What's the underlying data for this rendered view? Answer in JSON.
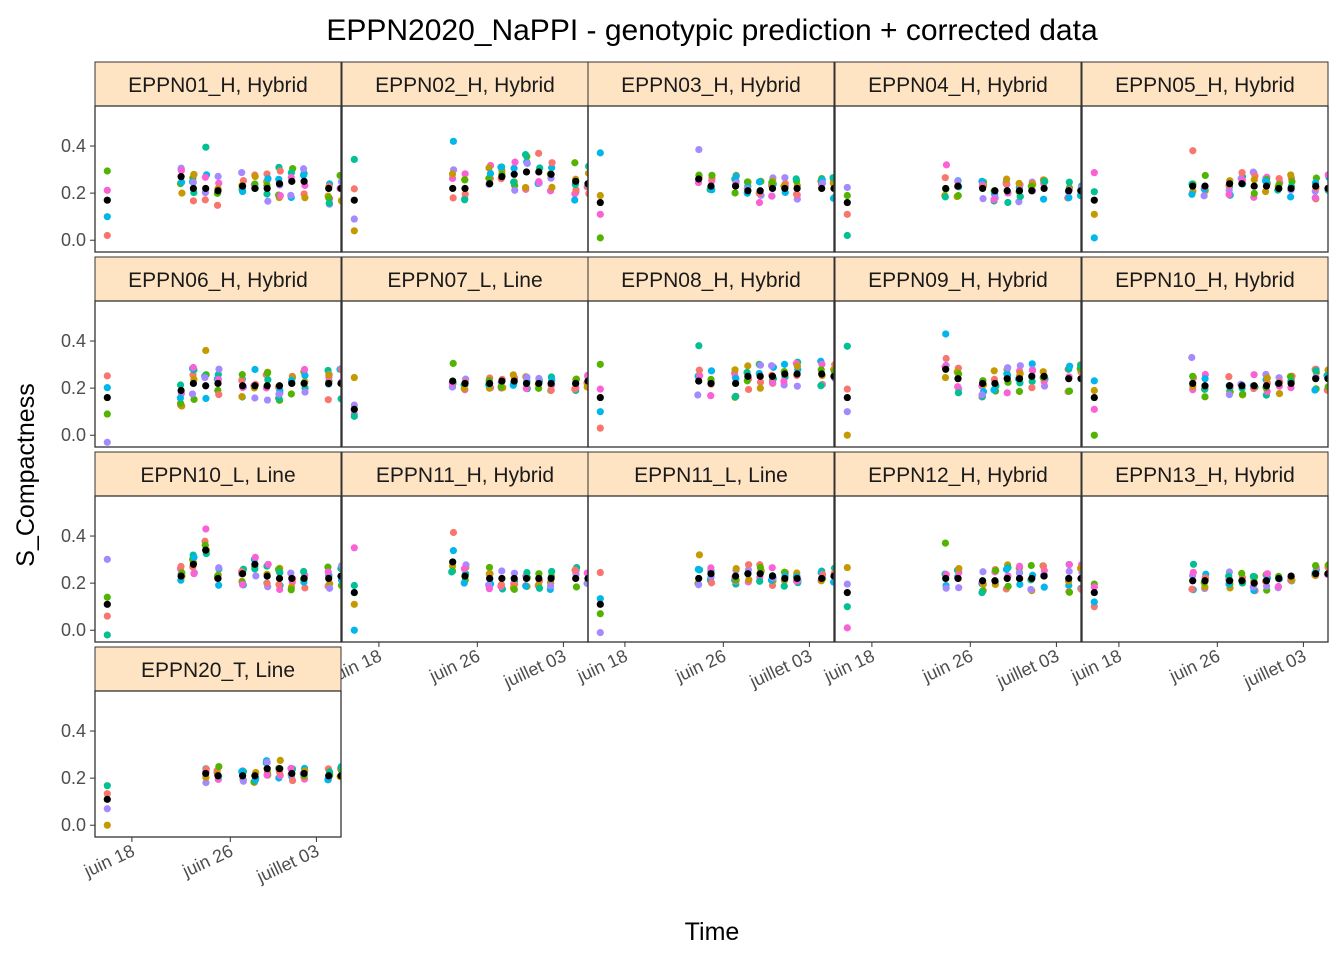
{
  "chart_data": {
    "type": "scatter",
    "title": "EPPN2020_NaPPI - genotypic prediction + corrected data",
    "xlabel": "Time",
    "ylabel": "S_Compactness",
    "ylim": [
      -0.05,
      0.57
    ],
    "xlim": [
      "2020-06-15",
      "2020-07-05"
    ],
    "y_ticks": [
      "0.0",
      "0.2",
      "0.4"
    ],
    "y_tick_values": [
      0.0,
      0.2,
      0.4
    ],
    "x_ticks": [
      {
        "label": "juin 18",
        "date": "2020-06-18"
      },
      {
        "label": "juin 26",
        "date": "2020-06-26"
      },
      {
        "label": "juillet 03",
        "date": "2020-07-03"
      }
    ],
    "grid": false,
    "legend": "none",
    "prediction_color": "#000000",
    "strip_fill": "#FFE4C4",
    "point_colors": [
      "#F8766D",
      "#C49A00",
      "#53B400",
      "#00C094",
      "#00B6EB",
      "#A58AFF",
      "#FB61D7"
    ],
    "dates": [
      "2020-06-16",
      "2020-06-22",
      "2020-06-23",
      "2020-06-24",
      "2020-06-25",
      "2020-06-27",
      "2020-06-28",
      "2020-06-29",
      "2020-06-30",
      "2020-07-01",
      "2020-07-02",
      "2020-07-04",
      "2020-07-05"
    ],
    "panels": [
      {
        "label": "EPPN01_H, Hybrid",
        "pred": [
          0.17,
          0.27,
          0.22,
          0.22,
          0.21,
          0.23,
          0.22,
          0.22,
          0.24,
          0.25,
          0.25,
          0.22,
          0.22
        ],
        "spread": 0.07,
        "hi": 0.42,
        "lo": 0.02
      },
      {
        "label": "EPPN02_H, Hybrid",
        "pred": [
          0.17,
          null,
          null,
          0.22,
          0.22,
          0.24,
          0.27,
          0.28,
          0.29,
          0.29,
          0.28,
          0.25,
          0.24
        ],
        "spread": 0.08,
        "hi": 0.49,
        "lo": 0.04
      },
      {
        "label": "EPPN03_H, Hybrid",
        "pred": [
          0.16,
          null,
          null,
          0.26,
          0.23,
          0.23,
          0.21,
          0.21,
          0.22,
          0.22,
          0.22,
          0.22,
          0.22
        ],
        "spread": 0.05,
        "hi": 0.53,
        "lo": 0.01
      },
      {
        "label": "EPPN04_H, Hybrid",
        "pred": [
          0.16,
          null,
          null,
          0.22,
          0.23,
          0.22,
          0.21,
          0.21,
          0.21,
          0.21,
          0.22,
          0.21,
          0.21
        ],
        "spread": 0.05,
        "hi": 0.32,
        "lo": 0.02
      },
      {
        "label": "EPPN05_H, Hybrid",
        "pred": [
          0.17,
          null,
          null,
          0.23,
          0.23,
          0.24,
          0.24,
          0.23,
          0.23,
          0.22,
          0.22,
          0.23,
          0.22
        ],
        "spread": 0.06,
        "hi": 0.41,
        "lo": 0.01
      },
      {
        "label": "EPPN06_H, Hybrid",
        "pred": [
          0.16,
          0.19,
          0.22,
          0.21,
          0.22,
          0.21,
          0.21,
          0.21,
          0.21,
          0.22,
          0.22,
          0.22,
          0.22
        ],
        "spread": 0.07,
        "hi": 0.36,
        "lo": -0.03
      },
      {
        "label": "EPPN07_L, Line",
        "pred": [
          0.11,
          null,
          null,
          0.23,
          0.22,
          0.22,
          0.23,
          0.23,
          0.22,
          0.22,
          0.22,
          0.22,
          0.23
        ],
        "spread": 0.03,
        "hi": 0.35,
        "lo": 0.09
      },
      {
        "label": "EPPN08_H, Hybrid",
        "pred": [
          0.16,
          null,
          null,
          0.23,
          0.22,
          0.22,
          0.25,
          0.25,
          0.25,
          0.26,
          0.26,
          0.26,
          0.25
        ],
        "spread": 0.06,
        "hi": 0.43,
        "lo": 0.03
      },
      {
        "label": "EPPN09_H, Hybrid",
        "pred": [
          0.16,
          null,
          null,
          0.28,
          0.24,
          0.22,
          0.22,
          0.24,
          0.24,
          0.25,
          0.25,
          0.24,
          0.24
        ],
        "spread": 0.06,
        "hi": 0.54,
        "lo": 0.0
      },
      {
        "label": "EPPN10_H, Hybrid",
        "pred": [
          0.16,
          null,
          null,
          0.22,
          0.21,
          0.21,
          0.21,
          0.21,
          0.21,
          0.22,
          0.22,
          0.24,
          0.24
        ],
        "spread": 0.05,
        "hi": 0.33,
        "lo": 0.0
      },
      {
        "label": "EPPN10_L, Line",
        "pred": [
          0.11,
          0.23,
          0.28,
          0.34,
          0.22,
          0.24,
          0.28,
          0.23,
          0.22,
          0.22,
          0.22,
          0.22,
          0.23
        ],
        "spread": 0.05,
        "hi": 0.43,
        "lo": -0.02
      },
      {
        "label": "EPPN11_H, Hybrid",
        "pred": [
          0.16,
          null,
          null,
          0.29,
          0.23,
          0.22,
          0.22,
          0.22,
          0.22,
          0.22,
          0.22,
          0.22,
          0.22
        ],
        "spread": 0.05,
        "hi": 0.5,
        "lo": 0.0
      },
      {
        "label": "EPPN11_L, Line",
        "pred": [
          0.11,
          null,
          null,
          0.22,
          0.24,
          0.23,
          0.24,
          0.24,
          0.23,
          0.22,
          0.22,
          0.22,
          0.23
        ],
        "spread": 0.04,
        "hi": 0.35,
        "lo": -0.01
      },
      {
        "label": "EPPN12_H, Hybrid",
        "pred": [
          0.16,
          null,
          null,
          0.22,
          0.22,
          0.21,
          0.21,
          0.22,
          0.22,
          0.22,
          0.23,
          0.22,
          0.22
        ],
        "spread": 0.06,
        "hi": 0.38,
        "lo": 0.01
      },
      {
        "label": "EPPN13_H, Hybrid",
        "pred": [
          0.16,
          null,
          null,
          0.21,
          0.21,
          0.21,
          0.21,
          0.2,
          0.21,
          0.22,
          0.23,
          0.24,
          0.24
        ],
        "spread": 0.04,
        "hi": 0.28,
        "lo": 0.1
      },
      {
        "label": "EPPN20_T, Line",
        "pred": [
          0.11,
          null,
          null,
          0.22,
          0.21,
          0.21,
          0.21,
          0.24,
          0.24,
          0.22,
          0.22,
          0.21,
          0.21
        ],
        "spread": 0.04,
        "hi": 0.24,
        "lo": 0.0
      }
    ]
  }
}
